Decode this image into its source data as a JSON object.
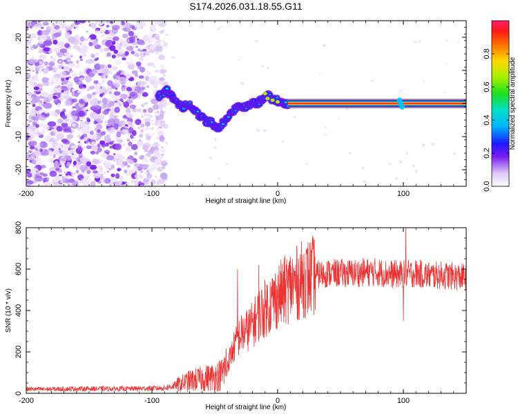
{
  "title": "S174.2026.031.18.55.G11",
  "chart_data": [
    {
      "type": "heatmap",
      "xlabel": "Height of straight line (km)",
      "ylabel": "Frequency (Hz)",
      "xlim": [
        -200,
        150
      ],
      "ylim": [
        -25,
        25
      ],
      "xticks": [
        -200,
        -100,
        0,
        100
      ],
      "xtick_labels": [
        "-200",
        "-100",
        "0",
        "100"
      ],
      "yticks": [
        -20,
        -10,
        0,
        10,
        20
      ],
      "ytick_labels": [
        "-20",
        "-10",
        "0",
        "10",
        "20"
      ],
      "colorbar": {
        "label": "Normalized spectral amplitude",
        "range": [
          0,
          1
        ],
        "ticks": [
          0.0,
          0.2,
          0.4,
          0.6,
          0.8
        ],
        "tick_labels": [
          "0.0",
          "0.2",
          "0.4",
          "0.6",
          "0.8"
        ]
      },
      "noise_region_x": [
        -200,
        -95
      ],
      "signal_track": {
        "x": [
          -95,
          -88,
          -82,
          -76,
          -70,
          -64,
          -58,
          -52,
          -48,
          -44,
          -40,
          -36,
          -32,
          -28,
          -24,
          -20,
          -16,
          -12,
          -8,
          -4,
          0,
          4,
          8
        ],
        "y": [
          2,
          4,
          1,
          -1,
          0,
          -3,
          -5,
          -6,
          -8,
          -6,
          -4,
          -2,
          -1,
          -1,
          -1,
          0,
          0,
          1,
          3,
          1,
          1,
          0,
          0
        ]
      },
      "carrier": {
        "y": 0,
        "x_start": 8,
        "x_end": 150,
        "amplitude": 1.0
      }
    },
    {
      "type": "line",
      "xlabel": "Height of straight line (km)",
      "ylabel": "SNR (10 * v/v)",
      "xlim": [
        -200,
        150
      ],
      "ylim": [
        0,
        800
      ],
      "xticks": [
        -200,
        -100,
        0,
        100
      ],
      "xtick_labels": [
        "-200",
        "-100",
        "0",
        "100"
      ],
      "yticks": [
        0,
        200,
        400,
        600,
        800
      ],
      "ytick_labels": [
        "0",
        "200",
        "400",
        "600",
        "800"
      ],
      "color": "#ee3333",
      "series": [
        {
          "name": "SNR",
          "x": [
            -200,
            -180,
            -160,
            -140,
            -120,
            -100,
            -90,
            -80,
            -70,
            -60,
            -50,
            -45,
            -40,
            -35,
            -30,
            -25,
            -20,
            -15,
            -10,
            -5,
            0,
            5,
            10,
            15,
            20,
            25,
            30,
            35,
            40,
            50,
            60,
            70,
            80,
            90,
            100,
            110,
            120,
            130,
            140,
            150
          ],
          "y": [
            20,
            20,
            22,
            22,
            22,
            24,
            25,
            40,
            60,
            70,
            80,
            90,
            140,
            220,
            280,
            300,
            330,
            380,
            410,
            440,
            470,
            490,
            520,
            530,
            550,
            560,
            570,
            575,
            580,
            580,
            580,
            585,
            585,
            575,
            575,
            580,
            570,
            570,
            565,
            560
          ]
        }
      ],
      "spikes": [
        {
          "x": -32,
          "y": 600
        },
        {
          "x": -15,
          "y": 620
        },
        {
          "x": 102,
          "y": 800
        },
        {
          "x": 100,
          "y": 350
        }
      ]
    }
  ]
}
